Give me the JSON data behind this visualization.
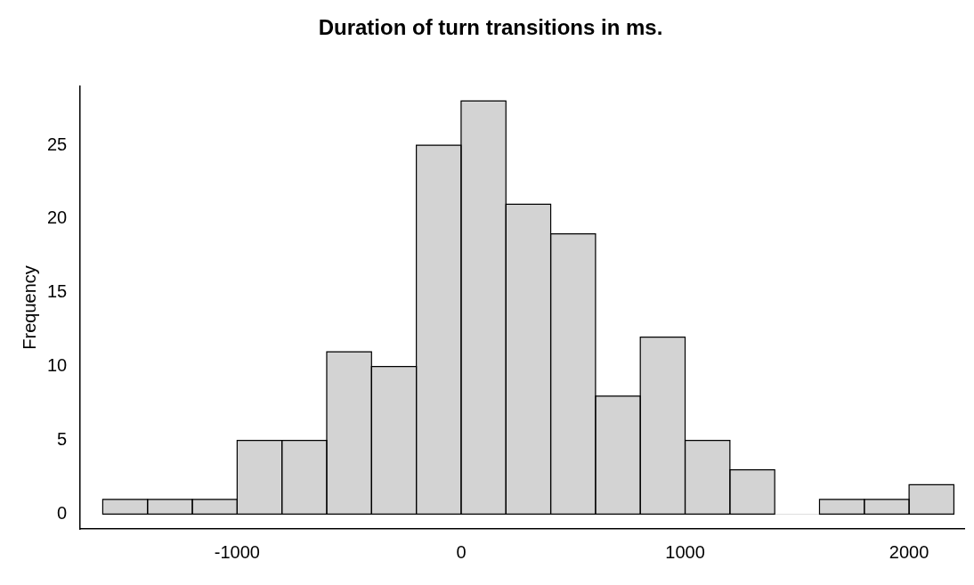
{
  "chart_data": {
    "type": "histogram",
    "title": "Duration of turn transitions in ms.",
    "ylabel": "Frequency",
    "bins": [
      -1600,
      -1400,
      -1200,
      -1000,
      -800,
      -600,
      -400,
      -200,
      0,
      200,
      400,
      600,
      800,
      1000,
      1200,
      1400,
      1600,
      1800,
      2000,
      2200
    ],
    "values": [
      1,
      1,
      1,
      5,
      5,
      11,
      10,
      25,
      28,
      21,
      19,
      8,
      12,
      5,
      3,
      0,
      1,
      1,
      2
    ],
    "color": "#d3d3d3",
    "xlim": [
      -1700,
      2250
    ],
    "ylim": [
      -1,
      29
    ],
    "xticks": [
      -1000,
      0,
      1000,
      2000
    ],
    "yticks": [
      0,
      5,
      10,
      15,
      20,
      25
    ],
    "grid": false
  }
}
